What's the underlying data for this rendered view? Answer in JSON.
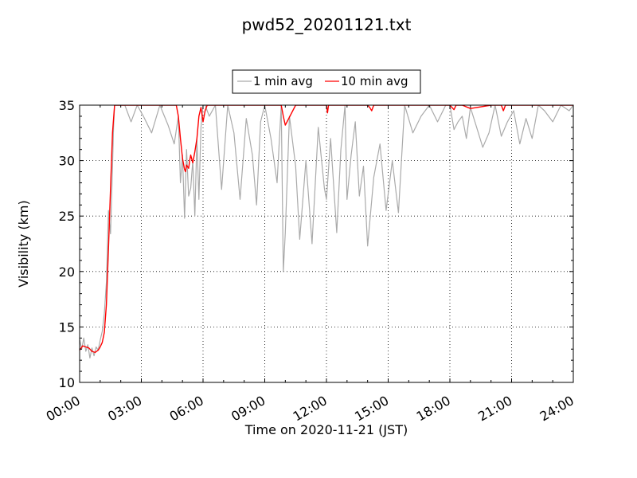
{
  "chart_data": {
    "type": "line",
    "title": "pwd52_20201121.txt",
    "xlabel": "Time on 2020-11-21 (JST)",
    "ylabel": "Visibility (km)",
    "xlim": [
      "00:00",
      "24:00"
    ],
    "ylim": [
      10,
      35
    ],
    "x_ticks": [
      "00:00",
      "03:00",
      "06:00",
      "09:00",
      "12:00",
      "15:00",
      "18:00",
      "21:00",
      "24:00"
    ],
    "y_ticks": [
      "10",
      "15",
      "20",
      "25",
      "30",
      "35"
    ],
    "grid": true,
    "legend_position": "top-center, above plot",
    "x_unit": "hours since 00:00",
    "series": [
      {
        "name": "1 min avg",
        "color": "#aaaaaa",
        "x": [
          0.0,
          0.1,
          0.2,
          0.3,
          0.4,
          0.5,
          0.6,
          0.7,
          0.8,
          0.9,
          1.0,
          1.1,
          1.2,
          1.3,
          1.4,
          1.5,
          1.6,
          1.65,
          1.7,
          1.75,
          1.8,
          1.85,
          1.9,
          2.0,
          2.2,
          2.5,
          2.8,
          3.1,
          3.5,
          3.9,
          4.3,
          4.6,
          4.8,
          4.9,
          5.0,
          5.1,
          5.2,
          5.3,
          5.4,
          5.5,
          5.6,
          5.7,
          5.8,
          5.9,
          6.0,
          6.1,
          6.3,
          6.6,
          6.9,
          7.2,
          7.5,
          7.8,
          8.1,
          8.4,
          8.6,
          8.8,
          9.0,
          9.3,
          9.6,
          9.8,
          9.9,
          10.0,
          10.2,
          10.5,
          10.7,
          11.0,
          11.3,
          11.6,
          11.9,
          12.0,
          12.2,
          12.5,
          12.7,
          12.9,
          13.0,
          13.2,
          13.4,
          13.6,
          13.8,
          14.0,
          14.3,
          14.6,
          14.9,
          15.2,
          15.5,
          15.8,
          16.2,
          16.6,
          17.0,
          17.4,
          17.8,
          18.0,
          18.2,
          18.4,
          18.6,
          18.8,
          19.0,
          19.3,
          19.6,
          19.9,
          20.2,
          20.5,
          20.8,
          21.1,
          21.4,
          21.7,
          22.0,
          22.3,
          22.6,
          23.0,
          23.4,
          23.8,
          24.0
        ],
        "y": [
          13.9,
          13.0,
          14.0,
          12.8,
          13.4,
          12.2,
          13.1,
          12.4,
          13.2,
          12.9,
          13.8,
          14.6,
          16.2,
          19.0,
          25.5,
          23.4,
          29.5,
          33.0,
          35.0,
          35.0,
          35.0,
          35.0,
          35.0,
          35.0,
          35.0,
          33.5,
          35.0,
          34.0,
          32.5,
          35.0,
          33.2,
          31.5,
          34.0,
          28.0,
          30.5,
          24.8,
          31.0,
          26.8,
          27.5,
          30.0,
          25.0,
          32.0,
          26.5,
          33.0,
          35.0,
          35.0,
          34.0,
          35.0,
          27.4,
          35.0,
          32.5,
          26.5,
          33.8,
          30.5,
          26.0,
          33.5,
          35.0,
          32.0,
          28.0,
          35.0,
          20.0,
          23.5,
          34.0,
          29.5,
          22.9,
          30.0,
          22.5,
          33.0,
          27.5,
          26.5,
          32.0,
          23.5,
          31.0,
          35.0,
          26.5,
          30.5,
          33.5,
          26.8,
          29.5,
          22.3,
          28.5,
          31.5,
          25.5,
          30.0,
          25.3,
          35.0,
          32.5,
          34.0,
          35.0,
          33.5,
          35.0,
          35.0,
          32.8,
          33.5,
          34.0,
          32.0,
          34.8,
          33.0,
          31.2,
          32.5,
          35.0,
          32.2,
          33.5,
          34.5,
          31.5,
          33.8,
          32.0,
          35.0,
          34.5,
          33.5,
          35.0,
          34.5,
          35.0
        ]
      },
      {
        "name": "10 min avg",
        "color": "#ff0000",
        "x": [
          0.0,
          0.15,
          0.3,
          0.45,
          0.6,
          0.75,
          0.9,
          1.0,
          1.1,
          1.2,
          1.3,
          1.4,
          1.5,
          1.6,
          1.7,
          1.8,
          1.9,
          2.0,
          2.5,
          3.0,
          3.5,
          4.0,
          4.5,
          4.7,
          4.8,
          4.9,
          5.0,
          5.1,
          5.15,
          5.2,
          5.3,
          5.35,
          5.4,
          5.5,
          5.6,
          5.7,
          5.8,
          5.9,
          6.0,
          6.1,
          6.2,
          6.5,
          7.0,
          7.5,
          8.0,
          8.5,
          9.0,
          9.5,
          9.8,
          9.9,
          10.0,
          10.5,
          11.0,
          11.5,
          12.0,
          12.05,
          12.1,
          12.2,
          12.5,
          13.0,
          13.5,
          14.0,
          14.1,
          14.2,
          14.3,
          14.5,
          15.0,
          16.0,
          17.0,
          18.0,
          18.2,
          18.3,
          18.4,
          18.6,
          19.0,
          20.0,
          20.5,
          20.6,
          20.7,
          21.0,
          22.0,
          23.0,
          24.0
        ],
        "y": [
          12.9,
          13.3,
          13.2,
          13.1,
          12.8,
          12.7,
          12.9,
          13.2,
          13.6,
          14.5,
          17.0,
          22.0,
          27.5,
          32.5,
          35.0,
          35.0,
          35.0,
          35.0,
          35.0,
          35.0,
          35.0,
          35.0,
          35.0,
          35.0,
          34.0,
          32.0,
          30.2,
          29.2,
          29.0,
          29.6,
          29.3,
          30.0,
          30.5,
          29.8,
          30.8,
          32.0,
          34.0,
          34.8,
          33.5,
          34.5,
          35.0,
          35.0,
          35.0,
          35.0,
          35.0,
          35.0,
          35.0,
          35.0,
          35.0,
          34.0,
          33.2,
          35.0,
          35.0,
          35.0,
          35.0,
          34.3,
          35.0,
          35.0,
          35.0,
          35.0,
          35.0,
          35.0,
          34.8,
          34.5,
          35.0,
          35.0,
          35.0,
          35.0,
          35.0,
          35.0,
          34.6,
          35.0,
          35.0,
          35.0,
          34.7,
          35.0,
          35.0,
          34.5,
          35.0,
          35.0,
          35.0,
          35.0,
          35.0
        ]
      }
    ]
  }
}
